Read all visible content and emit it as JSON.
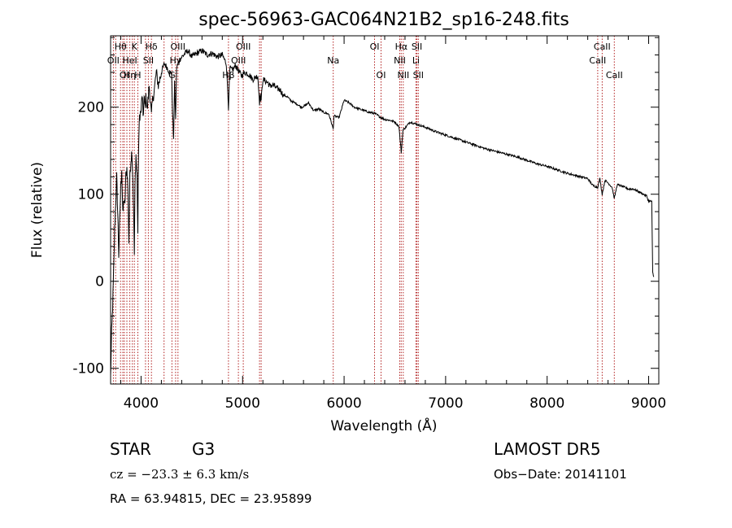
{
  "chart_data": {
    "type": "line",
    "title": "spec-56963-GAC064N21B2_sp16-248.fits",
    "xlabel": "Wavelength (Å)",
    "ylabel": "Flux (relative)",
    "xlim": [
      3700,
      9100
    ],
    "ylim": [
      -118,
      282
    ],
    "x_ticks": [
      4000,
      5000,
      6000,
      7000,
      8000,
      9000
    ],
    "x_tick_labels": [
      "4000",
      "5000",
      "6000",
      "7000",
      "8000",
      "9000"
    ],
    "y_ticks": [
      -100,
      0,
      100,
      200
    ],
    "y_tick_labels": [
      "-100",
      "0",
      "100",
      "200"
    ],
    "grid": false,
    "line_color": "#000000",
    "marker_color": "#b22222",
    "series": [
      {
        "x": [
          3700,
          3710,
          3720,
          3730,
          3740,
          3750,
          3760,
          3770,
          3780,
          3790,
          3800,
          3810,
          3820,
          3830,
          3840,
          3850,
          3860,
          3870,
          3880,
          3890,
          3900,
          3910,
          3920,
          3930,
          3934,
          3940,
          3950,
          3960,
          3968,
          3975,
          3985,
          4000,
          4010,
          4020,
          4030,
          4040,
          4050,
          4060,
          4080,
          4102,
          4110,
          4130,
          4150,
          4170,
          4200,
          4230,
          4260,
          4280,
          4300,
          4310,
          4320,
          4330,
          4340,
          4350,
          4380,
          4420,
          4460,
          4500,
          4550,
          4600,
          4650,
          4700,
          4750,
          4800,
          4820,
          4840,
          4861,
          4875,
          4900,
          4930,
          4960,
          4990,
          5020,
          5060,
          5100,
          5150,
          5167,
          5172,
          5183,
          5200,
          5250,
          5270,
          5300,
          5330,
          5370,
          5400,
          5440,
          5480,
          5530,
          5580,
          5620,
          5650,
          5700,
          5750,
          5800,
          5850,
          5893,
          5900,
          5950,
          6000,
          6050,
          6100,
          6150,
          6200,
          6250,
          6300,
          6350,
          6400,
          6450,
          6500,
          6540,
          6563,
          6580,
          6600,
          6650,
          6700,
          6750,
          6800,
          6900,
          7000,
          7100,
          7200,
          7300,
          7400,
          7500,
          7600,
          7700,
          7800,
          7900,
          8000,
          8100,
          8200,
          8300,
          8400,
          8450,
          8498,
          8520,
          8542,
          8570,
          8600,
          8640,
          8662,
          8690,
          8720,
          8760,
          8800,
          8850,
          8900,
          8950,
          8980,
          9000,
          9030,
          9040,
          9050
        ],
        "y": [
          -110,
          -60,
          -30,
          10,
          60,
          90,
          120,
          80,
          30,
          70,
          110,
          130,
          75,
          95,
          85,
          120,
          130,
          110,
          45,
          120,
          140,
          150,
          115,
          60,
          30,
          110,
          145,
          120,
          55,
          150,
          190,
          195,
          215,
          190,
          210,
          200,
          215,
          195,
          225,
          190,
          205,
          220,
          240,
          225,
          240,
          250,
          245,
          240,
          240,
          195,
          160,
          230,
          185,
          245,
          255,
          260,
          265,
          258,
          262,
          265,
          260,
          262,
          258,
          260,
          255,
          250,
          200,
          245,
          242,
          248,
          242,
          236,
          240,
          238,
          232,
          236,
          205,
          215,
          208,
          232,
          228,
          224,
          226,
          222,
          220,
          214,
          212,
          207,
          204,
          200,
          202,
          205,
          196,
          198,
          194,
          192,
          175,
          190,
          188,
          208,
          205,
          200,
          198,
          196,
          194,
          193,
          189,
          186,
          185,
          183,
          178,
          148,
          174,
          176,
          183,
          181,
          179,
          177,
          172,
          168,
          164,
          160,
          156,
          152,
          149,
          146,
          143,
          139,
          135,
          132,
          128,
          124,
          121,
          118,
          110,
          108,
          118,
          100,
          116,
          113,
          108,
          95,
          111,
          110,
          108,
          106,
          106,
          103,
          100,
          98,
          92,
          92,
          10,
          5
        ]
      }
    ],
    "spectral_lines": [
      {
        "label": "Hθ",
        "wavelength": 3798,
        "row": 1
      },
      {
        "label": "K",
        "wavelength": 3934,
        "row": 1
      },
      {
        "label": "Hδ",
        "wavelength": 4102,
        "row": 1
      },
      {
        "label": "OIII",
        "wavelength": 4363,
        "row": 1
      },
      {
        "label": "OIII",
        "wavelength": 5007,
        "row": 1
      },
      {
        "label": "OI",
        "wavelength": 6300,
        "row": 1
      },
      {
        "label": "Hα",
        "wavelength": 6563,
        "row": 1
      },
      {
        "label": "SII",
        "wavelength": 6717,
        "row": 1
      },
      {
        "label": "CaII",
        "wavelength": 8542,
        "row": 1
      },
      {
        "label": "OII",
        "wavelength": 3727,
        "row": 2
      },
      {
        "label": "HeI",
        "wavelength": 3889,
        "row": 2
      },
      {
        "label": "SII",
        "wavelength": 4072,
        "row": 2
      },
      {
        "label": "Hγ",
        "wavelength": 4340,
        "row": 2
      },
      {
        "label": "OIII",
        "wavelength": 4959,
        "row": 2
      },
      {
        "label": "Na",
        "wavelength": 5893,
        "row": 2
      },
      {
        "label": "NII",
        "wavelength": 6548,
        "row": 2
      },
      {
        "label": "Li",
        "wavelength": 6708,
        "row": 2
      },
      {
        "label": "CaII",
        "wavelength": 8498,
        "row": 2
      },
      {
        "label": "OI",
        "wavelength": 3835,
        "row": 3
      },
      {
        "label": "Hη",
        "wavelength": 3889,
        "row": 3
      },
      {
        "label": "H",
        "wavelength": 3968,
        "row": 3
      },
      {
        "label": "G",
        "wavelength": 4304,
        "row": 3
      },
      {
        "label": "Hβ",
        "wavelength": 4861,
        "row": 3
      },
      {
        "label": "OI",
        "wavelength": 6364,
        "row": 3
      },
      {
        "label": "NII",
        "wavelength": 6583,
        "row": 3
      },
      {
        "label": "SII",
        "wavelength": 6731,
        "row": 3
      },
      {
        "label": "CaII",
        "wavelength": 8662,
        "row": 3
      }
    ],
    "extra_marker_wavelengths": [
      3750,
      3820,
      3860,
      3914,
      4044,
      4102,
      4226,
      5167,
      5183
    ]
  },
  "footer": {
    "class": "STAR",
    "subclass": "G3",
    "cz": "cz = −23.3 ± 6.3 km/s",
    "coords": "RA =  63.94815, DEC =  23.95899",
    "survey": "LAMOST  DR5",
    "obs_date": "Obs−Date: 20141101"
  }
}
